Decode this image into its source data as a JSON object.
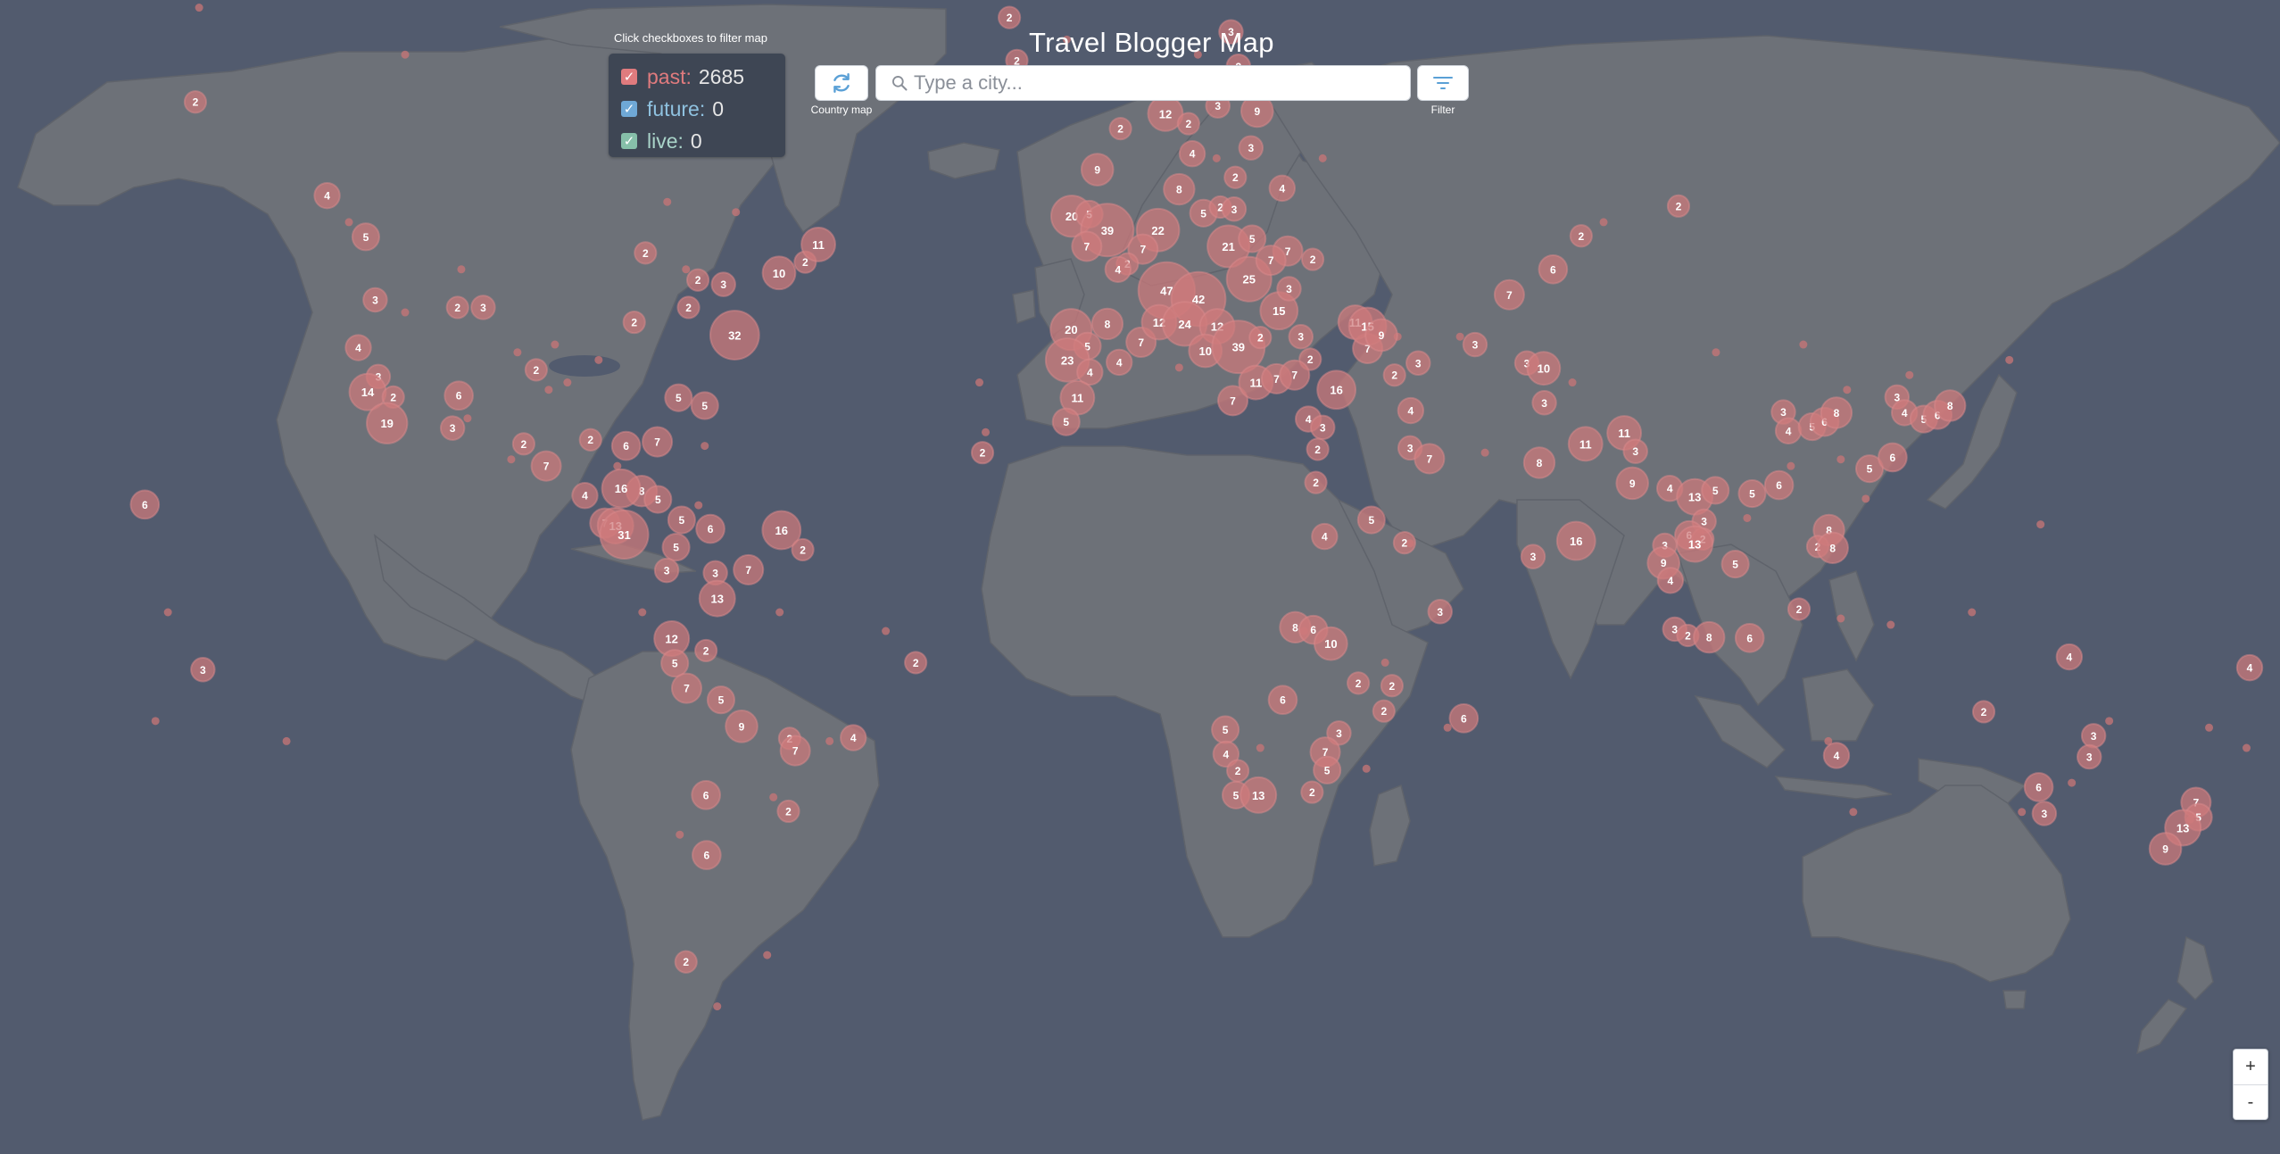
{
  "title": "Travel Blogger Map",
  "legend": {
    "hint": "Click checkboxes to filter map",
    "items": [
      {
        "label": "past:",
        "count": "2685",
        "checked": true,
        "color": "#e07b7e",
        "box": "#e07b7e"
      },
      {
        "label": "future:",
        "count": "0",
        "checked": true,
        "color": "#8fc2e0",
        "box": "#6fa8d6"
      },
      {
        "label": "live:",
        "count": "0",
        "checked": true,
        "color": "#a9d4c9",
        "box": "#86bfa9"
      }
    ]
  },
  "toolbar": {
    "refresh_caption": "Country map",
    "refresh_icon": "refresh-icon",
    "search_placeholder": "Type a city...",
    "search_icon": "search-icon",
    "filter_caption": "Filter",
    "filter_icon": "filter-icon"
  },
  "zoom": {
    "in": "+",
    "out": "-"
  },
  "colors": {
    "ocean": "#525b6e",
    "land": "#6d7178",
    "marker": "#cf7a7c",
    "accent": "#5aa0d6"
  },
  "markers": [
    {
      "lon": -150.6,
      "lat": 61.6,
      "n": 2
    },
    {
      "lon": -129.5,
      "lat": 53.6,
      "n": 4
    },
    {
      "lon": -123.3,
      "lat": 49.5,
      "n": 5
    },
    {
      "lon": -121.8,
      "lat": 42.5,
      "n": 3
    },
    {
      "lon": -124.5,
      "lat": 36.6,
      "n": 4
    },
    {
      "lon": -121.3,
      "lat": 32.8,
      "n": 3
    },
    {
      "lon": -123.0,
      "lat": 30.7,
      "n": 14
    },
    {
      "lon": -118.9,
      "lat": 30.0,
      "n": 2
    },
    {
      "lon": -119.9,
      "lat": 26.3,
      "n": 19
    },
    {
      "lon": -108.6,
      "lat": 41.6,
      "n": 2
    },
    {
      "lon": -104.5,
      "lat": 41.6,
      "n": 3
    },
    {
      "lon": -96.0,
      "lat": 33.7,
      "n": 2
    },
    {
      "lon": -108.4,
      "lat": 30.2,
      "n": 6
    },
    {
      "lon": -109.4,
      "lat": 25.6,
      "n": 3
    },
    {
      "lon": -98.0,
      "lat": 23.3,
      "n": 2
    },
    {
      "lon": -78.5,
      "lat": 47.8,
      "n": 2
    },
    {
      "lon": -80.3,
      "lat": 39.8,
      "n": 2
    },
    {
      "lon": -71.6,
      "lat": 41.6,
      "n": 2
    },
    {
      "lon": -70.1,
      "lat": 44.8,
      "n": 2
    },
    {
      "lon": -66.0,
      "lat": 44.3,
      "n": 3
    },
    {
      "lon": -64.2,
      "lat": 38.2,
      "n": 32
    },
    {
      "lon": -57.1,
      "lat": 45.6,
      "n": 10
    },
    {
      "lon": -52.9,
      "lat": 46.8,
      "n": 2
    },
    {
      "lon": -50.8,
      "lat": 48.7,
      "n": 11
    },
    {
      "lon": -69.0,
      "lat": 28.8,
      "n": 5
    },
    {
      "lon": -73.2,
      "lat": 29.9,
      "n": 5
    },
    {
      "lon": -81.6,
      "lat": 23.0,
      "n": 6
    },
    {
      "lon": -87.3,
      "lat": 23.9,
      "n": 2
    },
    {
      "lon": -76.6,
      "lat": 23.6,
      "n": 7
    },
    {
      "lon": -94.4,
      "lat": 20.0,
      "n": 7
    },
    {
      "lon": -88.2,
      "lat": 15.5,
      "n": 4
    },
    {
      "lon": -79.1,
      "lat": 16.2,
      "n": 8
    },
    {
      "lon": -76.5,
      "lat": 14.9,
      "n": 5
    },
    {
      "lon": -85.0,
      "lat": 11.2,
      "n": 7
    },
    {
      "lon": -82.4,
      "lat": 16.6,
      "n": 16
    },
    {
      "lon": -83.3,
      "lat": 10.8,
      "n": 13
    },
    {
      "lon": -81.9,
      "lat": 9.4,
      "n": 31
    },
    {
      "lon": -72.7,
      "lat": 11.7,
      "n": 5
    },
    {
      "lon": -68.1,
      "lat": 10.3,
      "n": 6
    },
    {
      "lon": -56.7,
      "lat": 10.1,
      "n": 16
    },
    {
      "lon": -73.6,
      "lat": 7.4,
      "n": 5
    },
    {
      "lon": -53.3,
      "lat": 7.0,
      "n": 2
    },
    {
      "lon": -75.1,
      "lat": 3.7,
      "n": 3
    },
    {
      "lon": -67.3,
      "lat": 3.3,
      "n": 3
    },
    {
      "lon": -62.0,
      "lat": 3.8,
      "n": 7
    },
    {
      "lon": -67.0,
      "lat": -0.8,
      "n": 13
    },
    {
      "lon": -74.3,
      "lat": -7.2,
      "n": 12
    },
    {
      "lon": -68.8,
      "lat": -9.1,
      "n": 2
    },
    {
      "lon": -73.8,
      "lat": -11.1,
      "n": 5
    },
    {
      "lon": -71.9,
      "lat": -15.0,
      "n": 7
    },
    {
      "lon": -66.4,
      "lat": -16.8,
      "n": 5
    },
    {
      "lon": -63.1,
      "lat": -20.8,
      "n": 9
    },
    {
      "lon": -55.4,
      "lat": -22.6,
      "n": 2
    },
    {
      "lon": -54.5,
      "lat": -24.4,
      "n": 7
    },
    {
      "lon": -45.2,
      "lat": -22.5,
      "n": 4
    },
    {
      "lon": -35.2,
      "lat": -11.0,
      "n": 2
    },
    {
      "lon": -68.8,
      "lat": -30.7,
      "n": 6
    },
    {
      "lon": -55.6,
      "lat": -32.9,
      "n": 2
    },
    {
      "lon": -68.7,
      "lat": -38.6,
      "n": 6
    },
    {
      "lon": -72.0,
      "lat": -50.7,
      "n": 2
    },
    {
      "lon": -158.7,
      "lat": 14.1,
      "n": 6
    },
    {
      "lon": -149.4,
      "lat": -12.1,
      "n": 3
    },
    {
      "lon": -20.2,
      "lat": 67.4,
      "n": 2
    },
    {
      "lon": -19.0,
      "lat": 64.6,
      "n": 2
    },
    {
      "lon": -5.7,
      "lat": 62.7,
      "n": 3
    },
    {
      "lon": -2.4,
      "lat": 59.5,
      "n": 2
    },
    {
      "lon": 4.8,
      "lat": 60.7,
      "n": 12
    },
    {
      "lon": 8.5,
      "lat": 59.9,
      "n": 2
    },
    {
      "lon": 9.1,
      "lat": 57.4,
      "n": 4
    },
    {
      "lon": 7.0,
      "lat": 54.2,
      "n": 8
    },
    {
      "lon": -6.1,
      "lat": 56.0,
      "n": 9
    },
    {
      "lon": -10.2,
      "lat": 51.6,
      "n": 20
    },
    {
      "lon": -7.4,
      "lat": 51.8,
      "n": 5
    },
    {
      "lon": -4.5,
      "lat": 50.2,
      "n": 39
    },
    {
      "lon": 3.6,
      "lat": 50.2,
      "n": 22
    },
    {
      "lon": 10.9,
      "lat": 51.9,
      "n": 5
    },
    {
      "lon": -7.8,
      "lat": 48.5,
      "n": 7
    },
    {
      "lon": 1.2,
      "lat": 48.2,
      "n": 7
    },
    {
      "lon": -1.3,
      "lat": 46.6,
      "n": 2
    },
    {
      "lon": -2.8,
      "lat": 46.0,
      "n": 4
    },
    {
      "lon": 5.0,
      "lat": 43.6,
      "n": 47
    },
    {
      "lon": 10.1,
      "lat": 42.6,
      "n": 42
    },
    {
      "lon": 14.9,
      "lat": 48.5,
      "n": 21
    },
    {
      "lon": 18.2,
      "lat": 44.9,
      "n": 25
    },
    {
      "lon": -10.3,
      "lat": 38.9,
      "n": 20
    },
    {
      "lon": -4.5,
      "lat": 39.6,
      "n": 8
    },
    {
      "lon": -7.7,
      "lat": 36.8,
      "n": 5
    },
    {
      "lon": -10.9,
      "lat": 35.0,
      "n": 23
    },
    {
      "lon": -7.3,
      "lat": 33.4,
      "n": 4
    },
    {
      "lon": -2.6,
      "lat": 34.7,
      "n": 4
    },
    {
      "lon": 0.9,
      "lat": 37.3,
      "n": 7
    },
    {
      "lon": 3.8,
      "lat": 39.8,
      "n": 12
    },
    {
      "lon": 7.9,
      "lat": 39.6,
      "n": 24
    },
    {
      "lon": 13.1,
      "lat": 39.3,
      "n": 12
    },
    {
      "lon": 11.2,
      "lat": 36.2,
      "n": 10
    },
    {
      "lon": 16.5,
      "lat": 36.7,
      "n": 39
    },
    {
      "lon": 20.0,
      "lat": 37.9,
      "n": 2
    },
    {
      "lon": 23.0,
      "lat": 41.2,
      "n": 15
    },
    {
      "lon": -9.3,
      "lat": 29.9,
      "n": 11
    },
    {
      "lon": -11.1,
      "lat": 26.5,
      "n": 5
    },
    {
      "lon": -24.5,
      "lat": 22.0,
      "n": 2
    },
    {
      "lon": 15.6,
      "lat": 29.5,
      "n": 7
    },
    {
      "lon": 19.3,
      "lat": 32.0,
      "n": 11
    },
    {
      "lon": 22.6,
      "lat": 32.5,
      "n": 7
    },
    {
      "lon": 15.3,
      "lat": 66.5,
      "n": 3
    },
    {
      "lon": 16.5,
      "lat": 64.2,
      "n": 3
    },
    {
      "lon": 13.2,
      "lat": 61.3,
      "n": 3
    },
    {
      "lon": 19.5,
      "lat": 60.9,
      "n": 9
    },
    {
      "lon": 18.5,
      "lat": 57.9,
      "n": 3
    },
    {
      "lon": 16.0,
      "lat": 55.3,
      "n": 2
    },
    {
      "lon": 23.5,
      "lat": 54.3,
      "n": 4
    },
    {
      "lon": 13.6,
      "lat": 52.5,
      "n": 2
    },
    {
      "lon": 15.8,
      "lat": 52.3,
      "n": 3
    },
    {
      "lon": 18.7,
      "lat": 49.3,
      "n": 5
    },
    {
      "lon": 24.4,
      "lat": 48.0,
      "n": 7
    },
    {
      "lon": 28.4,
      "lat": 47.1,
      "n": 2
    },
    {
      "lon": 21.7,
      "lat": 47.0,
      "n": 7
    },
    {
      "lon": 24.6,
      "lat": 43.8,
      "n": 3
    },
    {
      "lon": 26.5,
      "lat": 38.0,
      "n": 3
    },
    {
      "lon": 28.0,
      "lat": 35.1,
      "n": 2
    },
    {
      "lon": 25.5,
      "lat": 33.0,
      "n": 7
    },
    {
      "lon": 32.2,
      "lat": 31.0,
      "n": 16
    },
    {
      "lon": 27.7,
      "lat": 26.9,
      "n": 4
    },
    {
      "lon": 30.0,
      "lat": 25.7,
      "n": 3
    },
    {
      "lon": 29.2,
      "lat": 22.5,
      "n": 2
    },
    {
      "lon": 28.9,
      "lat": 17.5,
      "n": 2
    },
    {
      "lon": 37.2,
      "lat": 36.5,
      "n": 7
    },
    {
      "lon": 35.2,
      "lat": 39.8,
      "n": 11
    },
    {
      "lon": 37.2,
      "lat": 39.3,
      "n": 15
    },
    {
      "lon": 39.4,
      "lat": 38.2,
      "n": 9
    },
    {
      "lon": 41.5,
      "lat": 33.0,
      "n": 2
    },
    {
      "lon": 44.1,
      "lat": 28.1,
      "n": 4
    },
    {
      "lon": 44.0,
      "lat": 22.7,
      "n": 3
    },
    {
      "lon": 47.1,
      "lat": 21.1,
      "n": 7
    },
    {
      "lon": 37.8,
      "lat": 11.7,
      "n": 5
    },
    {
      "lon": 30.3,
      "lat": 9.1,
      "n": 4
    },
    {
      "lon": 43.1,
      "lat": 8.1,
      "n": 2
    },
    {
      "lon": 45.3,
      "lat": 34.6,
      "n": 3
    },
    {
      "lon": 54.4,
      "lat": 37.0,
      "n": 3
    },
    {
      "lon": 59.9,
      "lat": 43.1,
      "n": 7
    },
    {
      "lon": 66.9,
      "lat": 46.0,
      "n": 6
    },
    {
      "lon": 71.4,
      "lat": 49.6,
      "n": 2
    },
    {
      "lon": 87.0,
      "lat": 52.6,
      "n": 2
    },
    {
      "lon": 62.7,
      "lat": 34.6,
      "n": 3
    },
    {
      "lon": 65.4,
      "lat": 33.9,
      "n": 10
    },
    {
      "lon": 65.5,
      "lat": 29.2,
      "n": 3
    },
    {
      "lon": 72.1,
      "lat": 23.3,
      "n": 11
    },
    {
      "lon": 78.3,
      "lat": 24.9,
      "n": 11
    },
    {
      "lon": 80.1,
      "lat": 22.2,
      "n": 3
    },
    {
      "lon": 64.7,
      "lat": 20.5,
      "n": 8
    },
    {
      "lon": 79.6,
      "lat": 17.4,
      "n": 9
    },
    {
      "lon": 63.7,
      "lat": 5.9,
      "n": 3
    },
    {
      "lon": 70.6,
      "lat": 8.4,
      "n": 16
    },
    {
      "lon": 85.6,
      "lat": 16.6,
      "n": 4
    },
    {
      "lon": 89.6,
      "lat": 15.3,
      "n": 13
    },
    {
      "lon": 92.9,
      "lat": 16.3,
      "n": 5
    },
    {
      "lon": 91.1,
      "lat": 11.5,
      "n": 3
    },
    {
      "lon": 88.7,
      "lat": 9.3,
      "n": 6
    },
    {
      "lon": 90.9,
      "lat": 8.7,
      "n": 2
    },
    {
      "lon": 89.6,
      "lat": 7.9,
      "n": 13
    },
    {
      "lon": 84.8,
      "lat": 7.7,
      "n": 3
    },
    {
      "lon": 84.6,
      "lat": 4.9,
      "n": 9
    },
    {
      "lon": 85.7,
      "lat": 2.1,
      "n": 4
    },
    {
      "lon": 96.1,
      "lat": 4.7,
      "n": 5
    },
    {
      "lon": 98.8,
      "lat": 15.8,
      "n": 5
    },
    {
      "lon": 103.1,
      "lat": 17.1,
      "n": 6
    },
    {
      "lon": 103.8,
      "lat": 27.9,
      "n": 3
    },
    {
      "lon": 104.6,
      "lat": 25.2,
      "n": 4
    },
    {
      "lon": 108.4,
      "lat": 25.8,
      "n": 5
    },
    {
      "lon": 110.4,
      "lat": 26.5,
      "n": 6
    },
    {
      "lon": 112.3,
      "lat": 27.8,
      "n": 8
    },
    {
      "lon": 111.1,
      "lat": 10.1,
      "n": 8
    },
    {
      "lon": 109.3,
      "lat": 7.5,
      "n": 2
    },
    {
      "lon": 111.7,
      "lat": 7.3,
      "n": 8
    },
    {
      "lon": 86.4,
      "lat": -5.7,
      "n": 3
    },
    {
      "lon": 88.5,
      "lat": -6.7,
      "n": 2
    },
    {
      "lon": 91.9,
      "lat": -7.0,
      "n": 8
    },
    {
      "lon": 98.4,
      "lat": -7.1,
      "n": 6
    },
    {
      "lon": 106.3,
      "lat": -2.5,
      "n": 2
    },
    {
      "lon": 48.8,
      "lat": -2.9,
      "n": 3
    },
    {
      "lon": 25.6,
      "lat": -5.4,
      "n": 8
    },
    {
      "lon": 28.5,
      "lat": -5.8,
      "n": 6
    },
    {
      "lon": 31.3,
      "lat": -8.0,
      "n": 10
    },
    {
      "lon": 35.7,
      "lat": -14.2,
      "n": 2
    },
    {
      "lon": 41.1,
      "lat": -14.6,
      "n": 2
    },
    {
      "lon": 39.8,
      "lat": -18.5,
      "n": 2
    },
    {
      "lon": 52.6,
      "lat": -19.6,
      "n": 6
    },
    {
      "lon": 23.6,
      "lat": -16.8,
      "n": 6
    },
    {
      "lon": 14.4,
      "lat": -21.3,
      "n": 5
    },
    {
      "lon": 14.5,
      "lat": -24.9,
      "n": 4
    },
    {
      "lon": 16.4,
      "lat": -27.3,
      "n": 2
    },
    {
      "lon": 32.6,
      "lat": -21.8,
      "n": 3
    },
    {
      "lon": 30.4,
      "lat": -24.6,
      "n": 7
    },
    {
      "lon": 30.7,
      "lat": -27.2,
      "n": 5
    },
    {
      "lon": 28.3,
      "lat": -30.3,
      "n": 2
    },
    {
      "lon": 16.1,
      "lat": -30.7,
      "n": 5
    },
    {
      "lon": 19.7,
      "lat": -30.7,
      "n": 13
    },
    {
      "lon": 135.9,
      "lat": -18.6,
      "n": 2
    },
    {
      "lon": 149.6,
      "lat": -10.1,
      "n": 4
    },
    {
      "lon": 153.5,
      "lat": -22.2,
      "n": 3
    },
    {
      "lon": 152.8,
      "lat": -25.3,
      "n": 3
    },
    {
      "lon": 144.7,
      "lat": -29.6,
      "n": 6
    },
    {
      "lon": 145.6,
      "lat": -33.2,
      "n": 3
    },
    {
      "lon": 112.3,
      "lat": -25.1,
      "n": 4
    },
    {
      "lon": 178.5,
      "lat": -11.8,
      "n": 4
    },
    {
      "lon": 169.9,
      "lat": -31.7,
      "n": 7
    },
    {
      "lon": 170.3,
      "lat": -33.7,
      "n": 5
    },
    {
      "lon": 167.8,
      "lat": -35.1,
      "n": 13
    },
    {
      "lon": 165.0,
      "lat": -37.8,
      "n": 9
    },
    {
      "lon": 122.0,
      "lat": 30.0,
      "n": 3
    },
    {
      "lon": 123.2,
      "lat": 27.8,
      "n": 4
    },
    {
      "lon": 126.3,
      "lat": 26.9,
      "n": 5
    },
    {
      "lon": 128.5,
      "lat": 27.5,
      "n": 6
    },
    {
      "lon": 130.5,
      "lat": 28.8,
      "n": 8
    },
    {
      "lon": 117.6,
      "lat": 19.6,
      "n": 5
    },
    {
      "lon": 121.3,
      "lat": 21.3,
      "n": 6
    }
  ],
  "dots": [
    {
      "lon": -150,
      "lat": 68
    },
    {
      "lon": -117,
      "lat": 65
    },
    {
      "lon": -126,
      "lat": 51
    },
    {
      "lon": -108,
      "lat": 46
    },
    {
      "lon": -117,
      "lat": 41
    },
    {
      "lon": -93,
      "lat": 37
    },
    {
      "lon": -91,
      "lat": 32
    },
    {
      "lon": -99,
      "lat": 36
    },
    {
      "lon": -86,
      "lat": 35
    },
    {
      "lon": -75,
      "lat": 53
    },
    {
      "lon": -72,
      "lat": 46
    },
    {
      "lon": -64,
      "lat": 52
    },
    {
      "lon": -94,
      "lat": 31
    },
    {
      "lon": -107,
      "lat": 27
    },
    {
      "lon": -100,
      "lat": 21
    },
    {
      "lon": -83,
      "lat": 20
    },
    {
      "lon": -70,
      "lat": 14
    },
    {
      "lon": -69,
      "lat": 23
    },
    {
      "lon": -79,
      "lat": -3
    },
    {
      "lon": -57,
      "lat": -3
    },
    {
      "lon": -40,
      "lat": -6
    },
    {
      "lon": -49,
      "lat": -23
    },
    {
      "lon": -58,
      "lat": -31
    },
    {
      "lon": -73,
      "lat": -36
    },
    {
      "lon": -67,
      "lat": -55
    },
    {
      "lon": -59,
      "lat": -50
    },
    {
      "lon": -157,
      "lat": -20
    },
    {
      "lon": -155,
      "lat": -3
    },
    {
      "lon": -136,
      "lat": -23
    },
    {
      "lon": -25,
      "lat": 32
    },
    {
      "lon": -24,
      "lat": 25
    },
    {
      "lon": -11,
      "lat": 66
    },
    {
      "lon": 10,
      "lat": 65
    },
    {
      "lon": 13,
      "lat": 57
    },
    {
      "lon": 7,
      "lat": 34
    },
    {
      "lon": 30,
      "lat": 57
    },
    {
      "lon": 42,
      "lat": 38
    },
    {
      "lon": 52,
      "lat": 38
    },
    {
      "lon": 56,
      "lat": 22
    },
    {
      "lon": 44,
      "lat": 8
    },
    {
      "lon": 27,
      "lat": -6
    },
    {
      "lon": 40,
      "lat": -11
    },
    {
      "lon": 20,
      "lat": -24
    },
    {
      "lon": 37,
      "lat": -27
    },
    {
      "lon": 50,
      "lat": -21
    },
    {
      "lon": 75,
      "lat": 51
    },
    {
      "lon": 70,
      "lat": 32
    },
    {
      "lon": 93,
      "lat": 36
    },
    {
      "lon": 114,
      "lat": 31
    },
    {
      "lon": 113,
      "lat": 21
    },
    {
      "lon": 117,
      "lat": 15
    },
    {
      "lon": 105,
      "lat": 20
    },
    {
      "lon": 98,
      "lat": 12
    },
    {
      "lon": 107,
      "lat": 37
    },
    {
      "lon": 124,
      "lat": 33
    },
    {
      "lon": 140,
      "lat": 35
    },
    {
      "lon": 145,
      "lat": 11
    },
    {
      "lon": 121,
      "lat": -5
    },
    {
      "lon": 113,
      "lat": -4
    },
    {
      "lon": 134,
      "lat": -3
    },
    {
      "lon": 111,
      "lat": -23
    },
    {
      "lon": 115,
      "lat": -33
    },
    {
      "lon": 142,
      "lat": -33
    },
    {
      "lon": 150,
      "lat": -29
    },
    {
      "lon": 156,
      "lat": -20
    },
    {
      "lon": 172,
      "lat": -21
    },
    {
      "lon": 178,
      "lat": -24
    },
    {
      "lon": 169,
      "lat": -34
    }
  ]
}
